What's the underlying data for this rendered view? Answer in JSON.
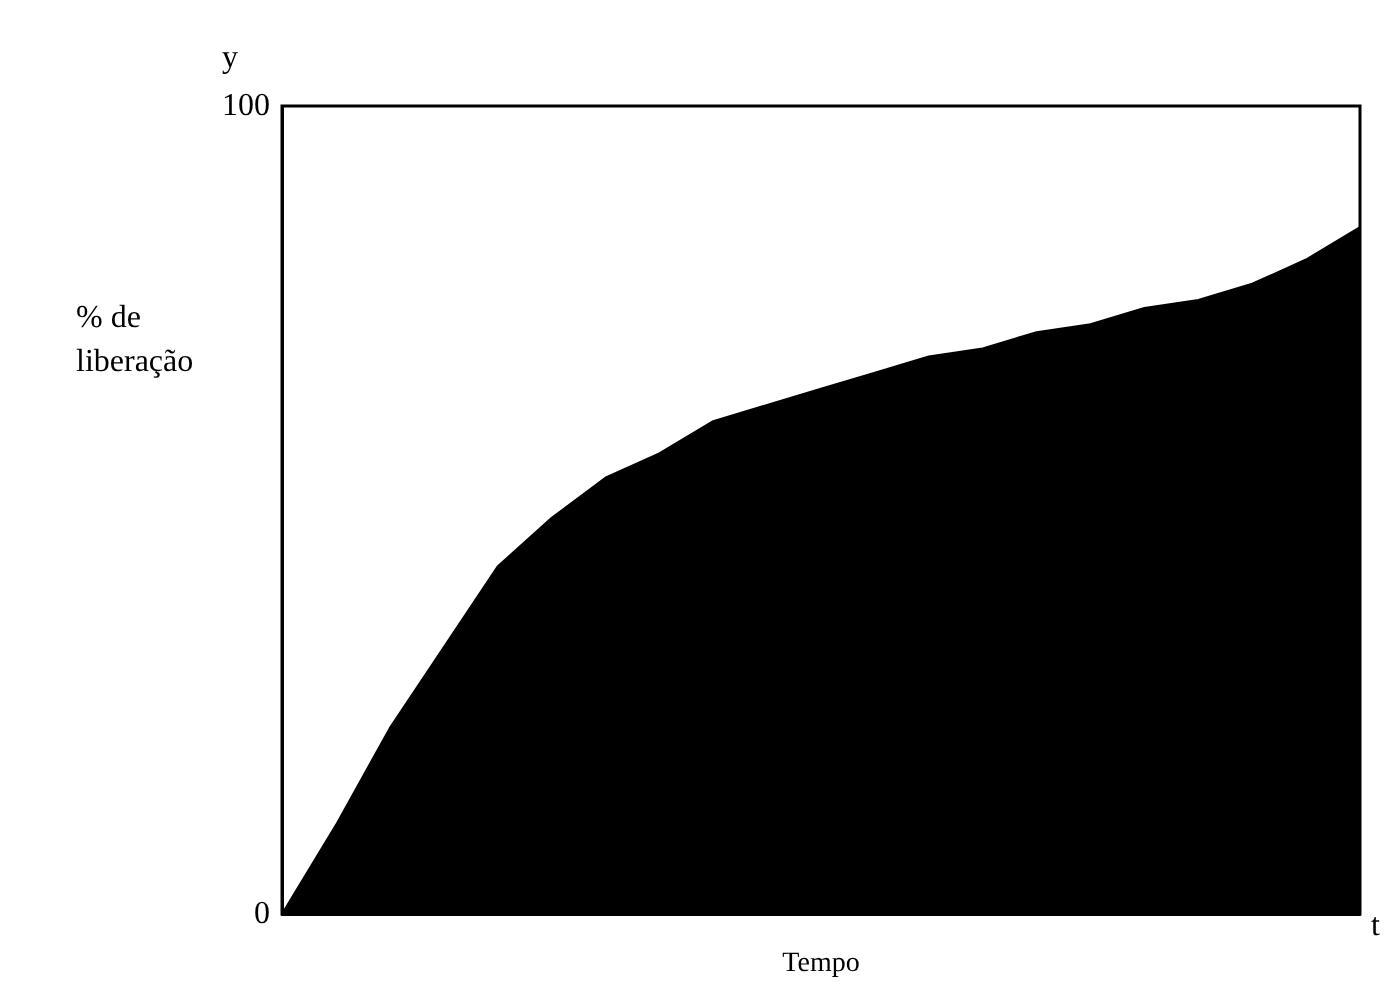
{
  "chart_data": {
    "type": "area",
    "xlabel": "Tempo",
    "ylabel": "% de\nliberação",
    "annotations": [
      "y",
      "t"
    ],
    "categories": [
      null,
      null,
      null,
      null,
      null,
      null,
      null,
      null,
      null,
      null,
      null,
      null,
      null,
      null,
      null,
      null,
      null,
      null,
      null,
      null,
      null
    ],
    "series": [
      {
        "color": "#000000",
        "values": [
          0,
          11,
          23,
          33,
          43,
          49,
          54,
          57,
          61,
          63,
          65,
          67,
          69,
          70,
          72,
          73,
          75,
          76,
          78,
          81,
          85
        ]
      }
    ],
    "ylim": [
      0,
      100
    ],
    "yticks": [
      0,
      100
    ],
    "grid": false
  }
}
